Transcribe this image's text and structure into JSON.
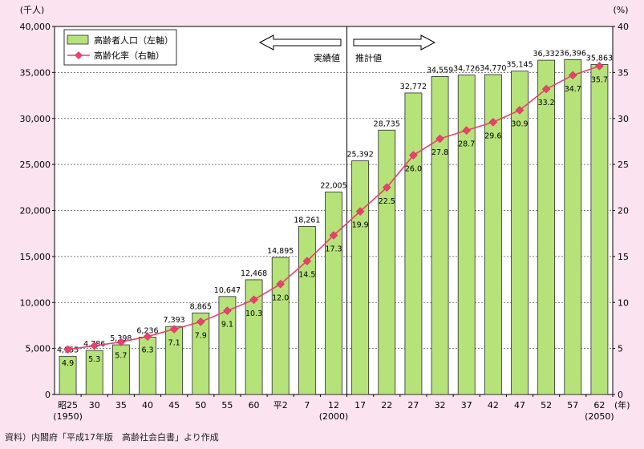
{
  "chart_data": {
    "type": "bar+line",
    "categories": [
      "昭25",
      "30",
      "35",
      "40",
      "45",
      "50",
      "55",
      "60",
      "平2",
      "7",
      "12",
      "17",
      "22",
      "27",
      "32",
      "37",
      "42",
      "47",
      "52",
      "57",
      "62"
    ],
    "category_subs": {
      "0": "(1950)",
      "10": "(2000)",
      "20": "(2050)"
    },
    "series": [
      {
        "name": "高齢者人口（左軸）",
        "type": "bar",
        "axis": "left",
        "color": "#b6e27a",
        "values": [
          4155,
          4786,
          5398,
          6236,
          7393,
          8865,
          10647,
          12468,
          14895,
          18261,
          22005,
          25392,
          28735,
          32772,
          34559,
          34726,
          34770,
          35145,
          36332,
          36396,
          35863
        ],
        "labels": [
          "4,155",
          "4,786",
          "5,398",
          "6,236",
          "7,393",
          "8,865",
          "10,647",
          "12,468",
          "14,895",
          "18,261",
          "22,005",
          "25,392",
          "28,735",
          "32,772",
          "34,559",
          "34,726",
          "34,770",
          "35,145",
          "36,332",
          "36,396",
          "35,863"
        ]
      },
      {
        "name": "高齢化率（右軸）",
        "type": "line",
        "axis": "right",
        "color": "#e8416c",
        "values": [
          4.9,
          5.3,
          5.7,
          6.3,
          7.1,
          7.9,
          9.1,
          10.3,
          12.0,
          14.5,
          17.3,
          19.9,
          22.5,
          26.0,
          27.8,
          28.7,
          29.6,
          30.9,
          33.2,
          34.7,
          35.7
        ],
        "labels": [
          "4.9",
          "5.3",
          "5.7",
          "6.3",
          "7.1",
          "7.9",
          "9.1",
          "10.3",
          "12.0",
          "14.5",
          "17.3",
          "19.9",
          "22.5",
          "26.0",
          "27.8",
          "28.7",
          "29.6",
          "30.9",
          "33.2",
          "34.7",
          "35.7"
        ]
      }
    ],
    "left_axis": {
      "unit": "(千人)",
      "ticks": [
        "0",
        "5,000",
        "10,000",
        "15,000",
        "20,000",
        "25,000",
        "30,000",
        "35,000",
        "40,000"
      ],
      "ylim": [
        0,
        40000
      ]
    },
    "right_axis": {
      "unit": "(%)",
      "ticks": [
        "0",
        "5",
        "10",
        "15",
        "20",
        "25",
        "30",
        "35",
        "40"
      ],
      "ylim": [
        0,
        40
      ]
    },
    "x_unit": "(年)",
    "annotations": {
      "actual": "実績値",
      "projected": "推計値"
    },
    "divider_after_index": 10,
    "grid": "dashed horizontal",
    "legend": "top-left"
  },
  "source_note": "資料）内閣府「平成17年版　高齢社会白書」より作成"
}
